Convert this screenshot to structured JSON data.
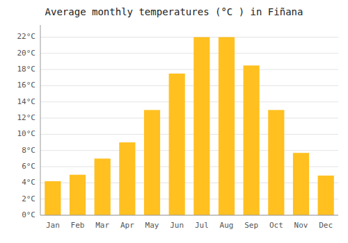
{
  "chart_data": {
    "type": "bar",
    "title": "Average monthly temperatures (°C ) in Fiñana",
    "categories": [
      "Jan",
      "Feb",
      "Mar",
      "Apr",
      "May",
      "Jun",
      "Jul",
      "Aug",
      "Sep",
      "Oct",
      "Nov",
      "Dec"
    ],
    "values": [
      4.2,
      5.0,
      7.0,
      9.0,
      13.0,
      17.5,
      22.0,
      22.0,
      18.5,
      13.0,
      7.7,
      4.9
    ],
    "color": "#FFC020",
    "ylim": [
      0,
      23.5
    ],
    "yticks": [
      {
        "value": 0,
        "label": "0°C"
      },
      {
        "value": 2,
        "label": "2°C"
      },
      {
        "value": 4,
        "label": "4°C"
      },
      {
        "value": 6,
        "label": "6°C"
      },
      {
        "value": 8,
        "label": "8°C"
      },
      {
        "value": 10,
        "label": "10°C"
      },
      {
        "value": 12,
        "label": "12°C"
      },
      {
        "value": 14,
        "label": "14°C"
      },
      {
        "value": 16,
        "label": "16°C"
      },
      {
        "value": 18,
        "label": "18°C"
      },
      {
        "value": 20,
        "label": "20°C"
      },
      {
        "value": 22,
        "label": "22°C"
      }
    ],
    "grid": true
  }
}
